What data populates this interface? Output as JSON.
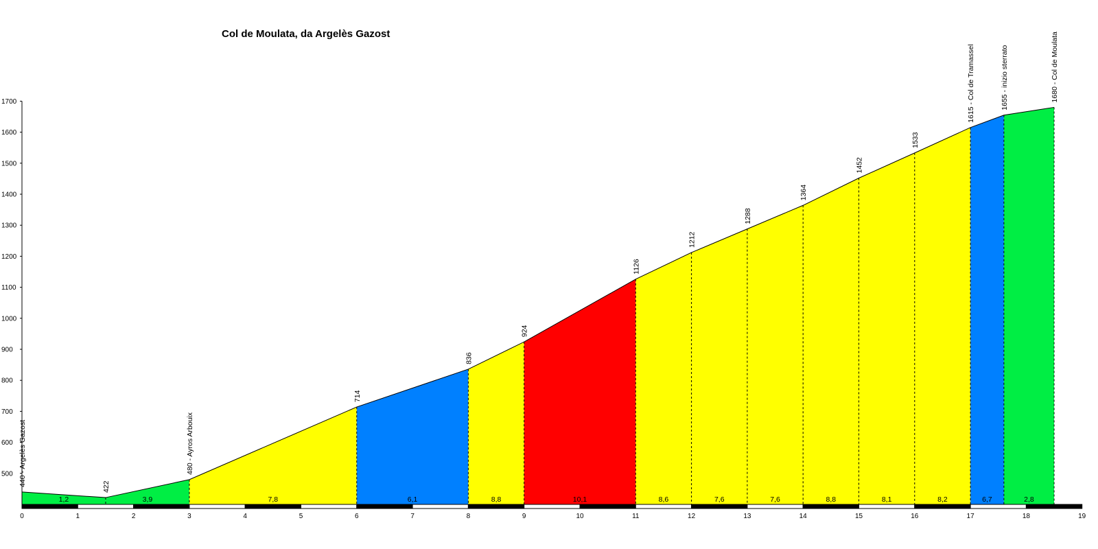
{
  "chart_data": {
    "type": "area",
    "title": "Col de Moulata, da Argelès Gazost",
    "xlabel": "",
    "ylabel": "",
    "xlim": [
      0,
      19
    ],
    "ylim": [
      400,
      1700
    ],
    "x_ticks": [
      0,
      1,
      2,
      3,
      4,
      5,
      6,
      7,
      8,
      9,
      10,
      11,
      12,
      13,
      14,
      15,
      16,
      17,
      18,
      19
    ],
    "y_ticks": [
      500,
      600,
      700,
      800,
      900,
      1000,
      1100,
      1200,
      1300,
      1400,
      1500,
      1600,
      1700
    ],
    "profile": [
      {
        "km": 0,
        "alt": 440
      },
      {
        "km": 1.5,
        "alt": 422
      },
      {
        "km": 3,
        "alt": 480
      },
      {
        "km": 6,
        "alt": 714
      },
      {
        "km": 8,
        "alt": 836
      },
      {
        "km": 9,
        "alt": 924
      },
      {
        "km": 11,
        "alt": 1126
      },
      {
        "km": 12,
        "alt": 1212
      },
      {
        "km": 13,
        "alt": 1288
      },
      {
        "km": 14,
        "alt": 1364
      },
      {
        "km": 15,
        "alt": 1452
      },
      {
        "km": 16,
        "alt": 1533
      },
      {
        "km": 17,
        "alt": 1615
      },
      {
        "km": 17.6,
        "alt": 1655
      },
      {
        "km": 18.5,
        "alt": 1680
      }
    ],
    "segments": [
      {
        "from": 0,
        "to": 1.5,
        "gradient": "1,2",
        "color": "#00ee44"
      },
      {
        "from": 1.5,
        "to": 3,
        "gradient": "3,9",
        "color": "#00ee44"
      },
      {
        "from": 3,
        "to": 6,
        "gradient": "7,8",
        "color": "#ffff00"
      },
      {
        "from": 6,
        "to": 8,
        "gradient": "6,1",
        "color": "#0080ff"
      },
      {
        "from": 8,
        "to": 9,
        "gradient": "8,8",
        "color": "#ffff00"
      },
      {
        "from": 9,
        "to": 11,
        "gradient": "10,1",
        "color": "#ff0000"
      },
      {
        "from": 11,
        "to": 12,
        "gradient": "8,6",
        "color": "#ffff00"
      },
      {
        "from": 12,
        "to": 13,
        "gradient": "7,6",
        "color": "#ffff00"
      },
      {
        "from": 13,
        "to": 14,
        "gradient": "7,6",
        "color": "#ffff00"
      },
      {
        "from": 14,
        "to": 15,
        "gradient": "8,8",
        "color": "#ffff00"
      },
      {
        "from": 15,
        "to": 16,
        "gradient": "8,1",
        "color": "#ffff00"
      },
      {
        "from": 16,
        "to": 17,
        "gradient": "8,2",
        "color": "#ffff00"
      },
      {
        "from": 17,
        "to": 17.6,
        "gradient": "6,7",
        "color": "#0080ff"
      },
      {
        "from": 17.6,
        "to": 18.5,
        "gradient": "2,8",
        "color": "#00ee44"
      }
    ],
    "point_labels": [
      {
        "km": 0,
        "alt": 440,
        "text": "440 - Argelès Gazost"
      },
      {
        "km": 1.5,
        "alt": 422,
        "text": "422"
      },
      {
        "km": 3,
        "alt": 480,
        "text": "480 - Ayros Arbouix"
      },
      {
        "km": 6,
        "alt": 714,
        "text": "714"
      },
      {
        "km": 8,
        "alt": 836,
        "text": "836"
      },
      {
        "km": 9,
        "alt": 924,
        "text": "924"
      },
      {
        "km": 11,
        "alt": 1126,
        "text": "1126"
      },
      {
        "km": 12,
        "alt": 1212,
        "text": "1212"
      },
      {
        "km": 13,
        "alt": 1288,
        "text": "1288"
      },
      {
        "km": 14,
        "alt": 1364,
        "text": "1364"
      },
      {
        "km": 15,
        "alt": 1452,
        "text": "1452"
      },
      {
        "km": 16,
        "alt": 1533,
        "text": "1533"
      },
      {
        "km": 17,
        "alt": 1615,
        "text": "1615 - Col de Tramassel"
      },
      {
        "km": 17.6,
        "alt": 1655,
        "text": "1655 - inizio sterrato"
      },
      {
        "km": 18.5,
        "alt": 1680,
        "text": "1680 - Col de Moulata"
      }
    ],
    "grid": false,
    "legend": "none"
  }
}
